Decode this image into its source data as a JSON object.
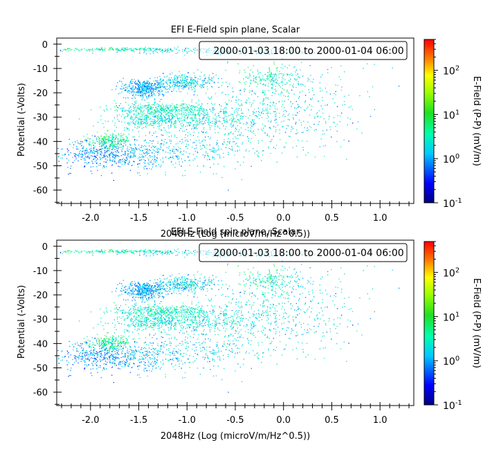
{
  "chart_data": [
    {
      "type": "scatter",
      "title": "EFI  E-Field spin plane, Scalar",
      "xlabel": "2048Hz (Log (microV/m/Hz^0.5))",
      "ylabel": "Potential (-Volts)",
      "annotation": "2000-01-03 18:00 to 2000-01-04 06:00",
      "xlim": [
        -2.35,
        1.35
      ],
      "ylim": [
        -65.5,
        2.5
      ],
      "x_ticks": [
        "-2.0",
        "-1.5",
        "-1.0",
        "-0.5",
        "0.0",
        "0.5",
        "1.0"
      ],
      "y_ticks": [
        "0",
        "-10",
        "-20",
        "-30",
        "-40",
        "-50",
        "-60"
      ],
      "grid": false,
      "colorbar": {
        "label": "E-Field (P-P) (mV/m)",
        "scale": "log",
        "range": [
          0.1,
          500
        ],
        "ticks": [
          "10",
          "10",
          "10",
          "10"
        ],
        "tick_exponents": [
          "-1",
          "0",
          "1",
          "2"
        ]
      },
      "clusters": [
        {
          "x": -1.75,
          "y": -2.0,
          "sx": 0.35,
          "sy": 0.35,
          "n": 160,
          "c": 4.0
        },
        {
          "x": -1.05,
          "y": -2.4,
          "sx": 0.4,
          "sy": 0.55,
          "n": 140,
          "c": 1.8
        },
        {
          "x": -0.3,
          "y": -3.2,
          "sx": 0.35,
          "sy": 0.6,
          "n": 90,
          "c": 1.4
        },
        {
          "x": -1.45,
          "y": -18.0,
          "sx": 0.12,
          "sy": 1.8,
          "n": 420,
          "c": 1.1
        },
        {
          "x": -1.02,
          "y": -15.5,
          "sx": 0.15,
          "sy": 1.6,
          "n": 320,
          "c": 1.6
        },
        {
          "x": -1.25,
          "y": -26.5,
          "sx": 0.25,
          "sy": 1.2,
          "n": 360,
          "c": 3.0
        },
        {
          "x": -1.35,
          "y": -31.0,
          "sx": 0.25,
          "sy": 2.0,
          "n": 380,
          "c": 2.5
        },
        {
          "x": -0.85,
          "y": -31.0,
          "sx": 0.25,
          "sy": 3.0,
          "n": 260,
          "c": 2.0
        },
        {
          "x": -1.8,
          "y": -39.5,
          "sx": 0.1,
          "sy": 1.5,
          "n": 220,
          "c": 5.0
        },
        {
          "x": -1.95,
          "y": -45.0,
          "sx": 0.2,
          "sy": 3.0,
          "n": 340,
          "c": 0.8
        },
        {
          "x": -1.45,
          "y": -45.0,
          "sx": 0.25,
          "sy": 3.0,
          "n": 300,
          "c": 1.2
        },
        {
          "x": -0.9,
          "y": -43.0,
          "sx": 0.3,
          "sy": 4.0,
          "n": 200,
          "c": 1.5
        },
        {
          "x": -0.1,
          "y": -14.0,
          "sx": 0.15,
          "sy": 3.0,
          "n": 180,
          "c": 3.5
        },
        {
          "x": -0.3,
          "y": -28.0,
          "sx": 0.4,
          "sy": 9.0,
          "n": 500,
          "c": 2.0
        },
        {
          "x": 0.3,
          "y": -25.0,
          "sx": 0.35,
          "sy": 10.0,
          "n": 160,
          "c": 1.5
        }
      ]
    },
    {
      "type": "scatter",
      "title": "EFI  E-Field spin plane, Scalar",
      "xlabel": "2048Hz (Log (microV/m/Hz^0.5))",
      "ylabel": "Potential (-Volts)",
      "annotation": "2000-01-03 18:00 to 2000-01-04 06:00",
      "xlim": [
        -2.35,
        1.35
      ],
      "ylim": [
        -65.5,
        2.5
      ],
      "x_ticks": [
        "-2.0",
        "-1.5",
        "-1.0",
        "-0.5",
        "0.0",
        "0.5",
        "1.0"
      ],
      "y_ticks": [
        "0",
        "-10",
        "-20",
        "-30",
        "-40",
        "-50",
        "-60"
      ],
      "grid": false,
      "colorbar": {
        "label": "E-Field (P-P) (mV/m)",
        "scale": "log",
        "range": [
          0.1,
          500
        ],
        "ticks": [
          "10",
          "10",
          "10",
          "10"
        ],
        "tick_exponents": [
          "-1",
          "0",
          "1",
          "2"
        ]
      },
      "clusters": [
        {
          "x": -1.75,
          "y": -2.0,
          "sx": 0.35,
          "sy": 0.35,
          "n": 160,
          "c": 4.0
        },
        {
          "x": -1.05,
          "y": -2.4,
          "sx": 0.4,
          "sy": 0.55,
          "n": 140,
          "c": 1.8
        },
        {
          "x": -0.3,
          "y": -3.2,
          "sx": 0.35,
          "sy": 0.6,
          "n": 90,
          "c": 1.4
        },
        {
          "x": -1.45,
          "y": -18.0,
          "sx": 0.12,
          "sy": 1.8,
          "n": 420,
          "c": 1.1
        },
        {
          "x": -1.02,
          "y": -15.5,
          "sx": 0.15,
          "sy": 1.6,
          "n": 320,
          "c": 1.6
        },
        {
          "x": -1.25,
          "y": -26.5,
          "sx": 0.25,
          "sy": 1.2,
          "n": 360,
          "c": 3.0
        },
        {
          "x": -1.35,
          "y": -31.0,
          "sx": 0.25,
          "sy": 2.0,
          "n": 380,
          "c": 2.5
        },
        {
          "x": -0.85,
          "y": -31.0,
          "sx": 0.25,
          "sy": 3.0,
          "n": 260,
          "c": 2.0
        },
        {
          "x": -1.8,
          "y": -39.5,
          "sx": 0.1,
          "sy": 1.5,
          "n": 220,
          "c": 5.0
        },
        {
          "x": -1.95,
          "y": -45.0,
          "sx": 0.2,
          "sy": 3.0,
          "n": 340,
          "c": 0.8
        },
        {
          "x": -1.45,
          "y": -45.0,
          "sx": 0.25,
          "sy": 3.0,
          "n": 300,
          "c": 1.2
        },
        {
          "x": -0.9,
          "y": -43.0,
          "sx": 0.3,
          "sy": 4.0,
          "n": 200,
          "c": 1.5
        },
        {
          "x": -0.1,
          "y": -14.0,
          "sx": 0.15,
          "sy": 3.0,
          "n": 180,
          "c": 3.5
        },
        {
          "x": -0.3,
          "y": -28.0,
          "sx": 0.4,
          "sy": 9.0,
          "n": 500,
          "c": 2.0
        },
        {
          "x": 0.3,
          "y": -25.0,
          "sx": 0.35,
          "sy": 10.0,
          "n": 160,
          "c": 1.5
        }
      ]
    }
  ]
}
